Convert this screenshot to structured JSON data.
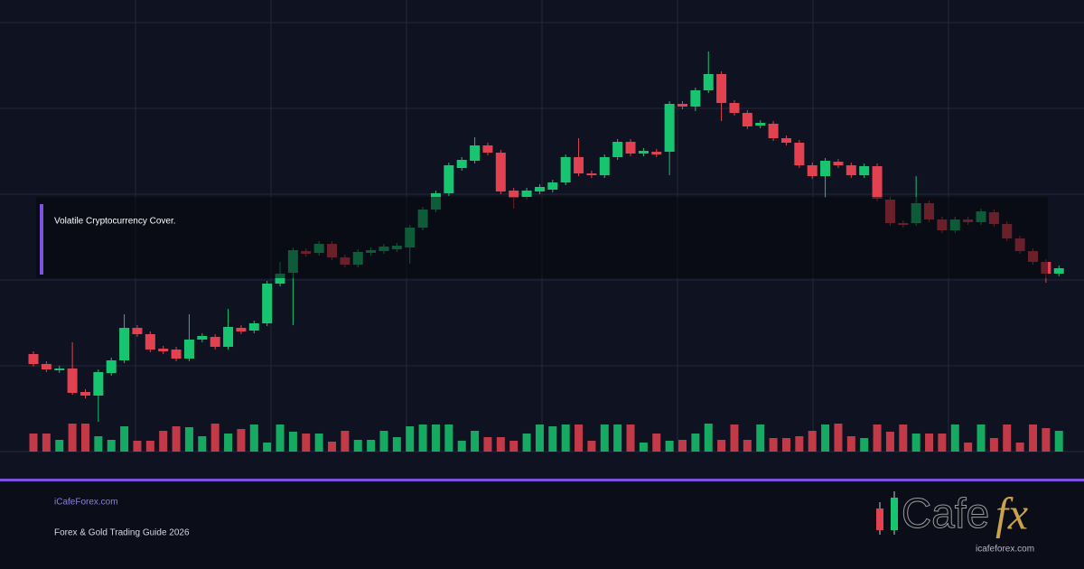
{
  "chart_data": {
    "type": "candlestick",
    "ylim": [
      130,
      605
    ],
    "up_color": "#17c46f",
    "down_color": "#e2424f",
    "candles": [
      {
        "open": 238,
        "high": 241,
        "low": 224,
        "close": 227
      },
      {
        "open": 227,
        "high": 230,
        "low": 218,
        "close": 221
      },
      {
        "open": 220,
        "high": 225,
        "low": 217,
        "close": 222
      },
      {
        "open": 222,
        "high": 251,
        "low": 193,
        "close": 195
      },
      {
        "open": 196,
        "high": 199,
        "low": 189,
        "close": 192
      },
      {
        "open": 192,
        "high": 221,
        "low": 163,
        "close": 218
      },
      {
        "open": 217,
        "high": 234,
        "low": 214,
        "close": 231
      },
      {
        "open": 231,
        "high": 282,
        "low": 228,
        "close": 267
      },
      {
        "open": 267,
        "high": 270,
        "low": 257,
        "close": 260
      },
      {
        "open": 260,
        "high": 263,
        "low": 240,
        "close": 243
      },
      {
        "open": 244,
        "high": 247,
        "low": 238,
        "close": 241
      },
      {
        "open": 243,
        "high": 246,
        "low": 230,
        "close": 233
      },
      {
        "open": 233,
        "high": 282,
        "low": 230,
        "close": 254
      },
      {
        "open": 254,
        "high": 261,
        "low": 251,
        "close": 258
      },
      {
        "open": 257,
        "high": 260,
        "low": 243,
        "close": 246
      },
      {
        "open": 246,
        "high": 288,
        "low": 243,
        "close": 268
      },
      {
        "open": 267,
        "high": 270,
        "low": 260,
        "close": 263
      },
      {
        "open": 264,
        "high": 275,
        "low": 261,
        "close": 272
      },
      {
        "open": 272,
        "high": 319,
        "low": 269,
        "close": 316
      },
      {
        "open": 316,
        "high": 340,
        "low": 313,
        "close": 327
      },
      {
        "open": 328,
        "high": 356,
        "low": 270,
        "close": 353
      },
      {
        "open": 352,
        "high": 355,
        "low": 346,
        "close": 349
      },
      {
        "open": 350,
        "high": 363,
        "low": 347,
        "close": 360
      },
      {
        "open": 360,
        "high": 363,
        "low": 342,
        "close": 345
      },
      {
        "open": 345,
        "high": 348,
        "low": 334,
        "close": 337
      },
      {
        "open": 337,
        "high": 354,
        "low": 334,
        "close": 351
      },
      {
        "open": 350,
        "high": 356,
        "low": 347,
        "close": 353
      },
      {
        "open": 352,
        "high": 360,
        "low": 349,
        "close": 357
      },
      {
        "open": 354,
        "high": 361,
        "low": 351,
        "close": 358
      },
      {
        "open": 356,
        "high": 381,
        "low": 338,
        "close": 378
      },
      {
        "open": 378,
        "high": 401,
        "low": 375,
        "close": 398
      },
      {
        "open": 398,
        "high": 419,
        "low": 395,
        "close": 416
      },
      {
        "open": 416,
        "high": 450,
        "low": 413,
        "close": 447
      },
      {
        "open": 444,
        "high": 456,
        "low": 441,
        "close": 453
      },
      {
        "open": 452,
        "high": 478,
        "low": 449,
        "close": 469
      },
      {
        "open": 469,
        "high": 472,
        "low": 458,
        "close": 461
      },
      {
        "open": 461,
        "high": 464,
        "low": 415,
        "close": 418
      },
      {
        "open": 419,
        "high": 422,
        "low": 399,
        "close": 411
      },
      {
        "open": 412,
        "high": 422,
        "low": 409,
        "close": 419
      },
      {
        "open": 418,
        "high": 426,
        "low": 415,
        "close": 423
      },
      {
        "open": 420,
        "high": 431,
        "low": 417,
        "close": 428
      },
      {
        "open": 428,
        "high": 459,
        "low": 425,
        "close": 456
      },
      {
        "open": 456,
        "high": 477,
        "low": 435,
        "close": 438
      },
      {
        "open": 438,
        "high": 441,
        "low": 433,
        "close": 436
      },
      {
        "open": 436,
        "high": 459,
        "low": 433,
        "close": 456
      },
      {
        "open": 456,
        "high": 476,
        "low": 453,
        "close": 473
      },
      {
        "open": 473,
        "high": 476,
        "low": 457,
        "close": 460
      },
      {
        "open": 460,
        "high": 466,
        "low": 457,
        "close": 463
      },
      {
        "open": 462,
        "high": 465,
        "low": 456,
        "close": 459
      },
      {
        "open": 462,
        "high": 518,
        "low": 436,
        "close": 515
      },
      {
        "open": 515,
        "high": 518,
        "low": 509,
        "close": 512
      },
      {
        "open": 512,
        "high": 533,
        "low": 507,
        "close": 530
      },
      {
        "open": 530,
        "high": 573,
        "low": 527,
        "close": 548
      },
      {
        "open": 548,
        "high": 551,
        "low": 496,
        "close": 516
      },
      {
        "open": 516,
        "high": 519,
        "low": 502,
        "close": 505
      },
      {
        "open": 505,
        "high": 508,
        "low": 487,
        "close": 490
      },
      {
        "open": 491,
        "high": 497,
        "low": 488,
        "close": 494
      },
      {
        "open": 493,
        "high": 496,
        "low": 474,
        "close": 477
      },
      {
        "open": 477,
        "high": 480,
        "low": 469,
        "close": 472
      },
      {
        "open": 472,
        "high": 475,
        "low": 444,
        "close": 447
      },
      {
        "open": 447,
        "high": 450,
        "low": 432,
        "close": 435
      },
      {
        "open": 435,
        "high": 455,
        "low": 411,
        "close": 452
      },
      {
        "open": 451,
        "high": 454,
        "low": 444,
        "close": 447
      },
      {
        "open": 447,
        "high": 450,
        "low": 433,
        "close": 436
      },
      {
        "open": 436,
        "high": 449,
        "low": 433,
        "close": 446
      },
      {
        "open": 446,
        "high": 449,
        "low": 407,
        "close": 410
      },
      {
        "open": 409,
        "high": 412,
        "low": 380,
        "close": 383
      },
      {
        "open": 383,
        "high": 386,
        "low": 378,
        "close": 381
      },
      {
        "open": 383,
        "high": 435,
        "low": 380,
        "close": 405
      },
      {
        "open": 405,
        "high": 408,
        "low": 384,
        "close": 387
      },
      {
        "open": 387,
        "high": 390,
        "low": 372,
        "close": 375
      },
      {
        "open": 375,
        "high": 390,
        "low": 372,
        "close": 387
      },
      {
        "open": 387,
        "high": 390,
        "low": 381,
        "close": 384
      },
      {
        "open": 384,
        "high": 399,
        "low": 381,
        "close": 396
      },
      {
        "open": 395,
        "high": 398,
        "low": 379,
        "close": 382
      },
      {
        "open": 382,
        "high": 385,
        "low": 363,
        "close": 366
      },
      {
        "open": 366,
        "high": 369,
        "low": 349,
        "close": 352
      },
      {
        "open": 352,
        "high": 355,
        "low": 337,
        "close": 340
      },
      {
        "open": 340,
        "high": 343,
        "low": 317,
        "close": 327
      },
      {
        "open": 327,
        "high": 336,
        "low": 324,
        "close": 333
      }
    ],
    "volume": [
      20,
      20,
      13,
      31,
      31,
      17,
      13,
      28,
      12,
      12,
      23,
      28,
      27,
      17,
      31,
      20,
      25,
      30,
      10,
      30,
      22,
      20,
      20,
      11,
      23,
      13,
      13,
      23,
      16,
      28,
      30,
      30,
      30,
      12,
      23,
      16,
      16,
      12,
      20,
      30,
      28,
      30,
      30,
      12,
      30,
      30,
      30,
      10,
      20,
      12,
      13,
      20,
      31,
      13,
      30,
      13,
      30,
      15,
      15,
      17,
      23,
      30,
      31,
      17,
      15,
      30,
      22,
      30,
      20,
      20,
      20,
      30,
      10,
      30,
      15,
      30,
      10,
      30,
      26,
      23
    ],
    "annotation": "Volatile Cryptocurrency Cover."
  },
  "footer": {
    "site": "iCafeForex.com",
    "subtitle": "Forex & Gold Trading Guide 2026"
  },
  "logo": {
    "text": "Cafe",
    "accent": "fx",
    "url": "icafeforex.com"
  }
}
